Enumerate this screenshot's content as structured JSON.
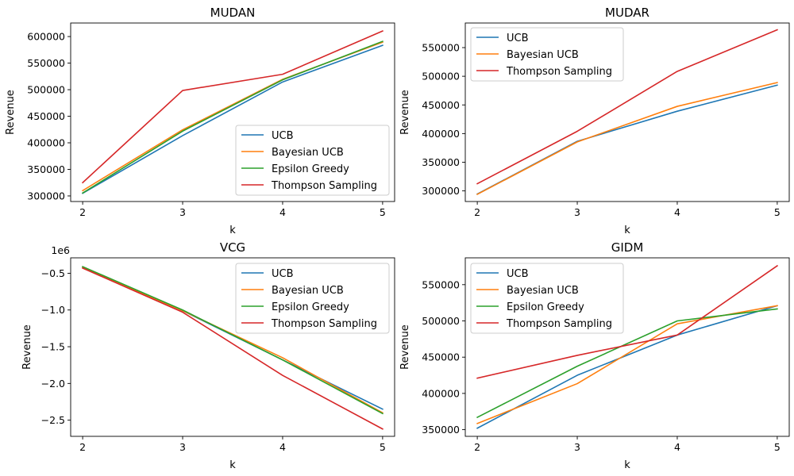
{
  "series_colors": {
    "UCB": "#1f77b4",
    "Bayesian UCB": "#ff7f0e",
    "Epsilon Greedy": "#2ca02c",
    "Thompson Sampling": "#d62728"
  },
  "chart_data": [
    {
      "id": "mudan",
      "type": "line",
      "title": "MUDAN",
      "xlabel": "k",
      "ylabel": "Revenue",
      "x": [
        2,
        3,
        4,
        5
      ],
      "xlim": [
        1.88,
        5.12
      ],
      "ylim": [
        289500,
        625500
      ],
      "yticks": [
        300000,
        350000,
        400000,
        450000,
        500000,
        550000,
        600000
      ],
      "ytick_labels": [
        "300000",
        "350000",
        "400000",
        "450000",
        "500000",
        "550000",
        "600000"
      ],
      "offset_label": "",
      "legend_position": "lower-right",
      "series": [
        {
          "name": "UCB",
          "values": [
            305000,
            413500,
            514500,
            583500
          ]
        },
        {
          "name": "Bayesian UCB",
          "values": [
            310000,
            424500,
            519500,
            589500
          ]
        },
        {
          "name": "Epsilon Greedy",
          "values": [
            305500,
            422000,
            518500,
            591000
          ]
        },
        {
          "name": "Thompson Sampling",
          "values": [
            325000,
            498500,
            529000,
            610500
          ]
        }
      ]
    },
    {
      "id": "mudar",
      "type": "line",
      "title": "MUDAR",
      "xlabel": "k",
      "ylabel": "Revenue",
      "x": [
        2,
        3,
        4,
        5
      ],
      "xlim": [
        1.88,
        5.12
      ],
      "ylim": [
        281500,
        592900
      ],
      "yticks": [
        300000,
        350000,
        400000,
        450000,
        500000,
        550000
      ],
      "ytick_labels": [
        "300000",
        "350000",
        "400000",
        "450000",
        "500000",
        "550000"
      ],
      "offset_label": "",
      "legend_position": "upper-left",
      "series": [
        {
          "name": "UCB",
          "values": [
            294500,
            386500,
            439000,
            484500
          ]
        },
        {
          "name": "Bayesian UCB",
          "values": [
            294000,
            385500,
            447500,
            489000
          ]
        },
        {
          "name": "Thompson Sampling",
          "values": [
            312500,
            404000,
            508500,
            581000
          ]
        }
      ]
    },
    {
      "id": "vcg",
      "type": "line",
      "title": "VCG",
      "xlabel": "k",
      "ylabel": "Revenue",
      "x": [
        2,
        3,
        4,
        5
      ],
      "xlim": [
        1.88,
        5.12
      ],
      "ylim": [
        -2.72,
        -0.29
      ],
      "yticks": [
        -2.5,
        -2.0,
        -1.5,
        -1.0,
        -0.5
      ],
      "ytick_labels": [
        "−2.5",
        "−2.0",
        "−1.5",
        "−1.0",
        "−0.5"
      ],
      "offset_label": "1e6",
      "legend_position": "upper-right",
      "series": [
        {
          "name": "UCB",
          "values": [
            -0.42,
            -1.01,
            -1.68,
            -2.35
          ]
        },
        {
          "name": "Bayesian UCB",
          "values": [
            -0.42,
            -1.01,
            -1.65,
            -2.4
          ]
        },
        {
          "name": "Epsilon Greedy",
          "values": [
            -0.41,
            -1.0,
            -1.68,
            -2.41
          ]
        },
        {
          "name": "Thompson Sampling",
          "values": [
            -0.43,
            -1.03,
            -1.89,
            -2.62
          ]
        }
      ]
    },
    {
      "id": "gidm",
      "type": "line",
      "title": "GIDM",
      "xlabel": "k",
      "ylabel": "Revenue",
      "x": [
        2,
        3,
        4,
        5
      ],
      "xlim": [
        1.88,
        5.12
      ],
      "ylim": [
        340800,
        587000
      ],
      "yticks": [
        350000,
        400000,
        450000,
        500000,
        550000
      ],
      "ytick_labels": [
        "350000",
        "400000",
        "450000",
        "500000",
        "550000"
      ],
      "offset_label": "",
      "legend_position": "upper-left",
      "series": [
        {
          "name": "UCB",
          "values": [
            352000,
            425000,
            480500,
            521000
          ]
        },
        {
          "name": "Bayesian UCB",
          "values": [
            358500,
            413500,
            496000,
            521000
          ]
        },
        {
          "name": "Epsilon Greedy",
          "values": [
            367000,
            437500,
            500000,
            516500
          ]
        },
        {
          "name": "Thompson Sampling",
          "values": [
            421000,
            452500,
            480500,
            576000
          ]
        }
      ]
    }
  ]
}
